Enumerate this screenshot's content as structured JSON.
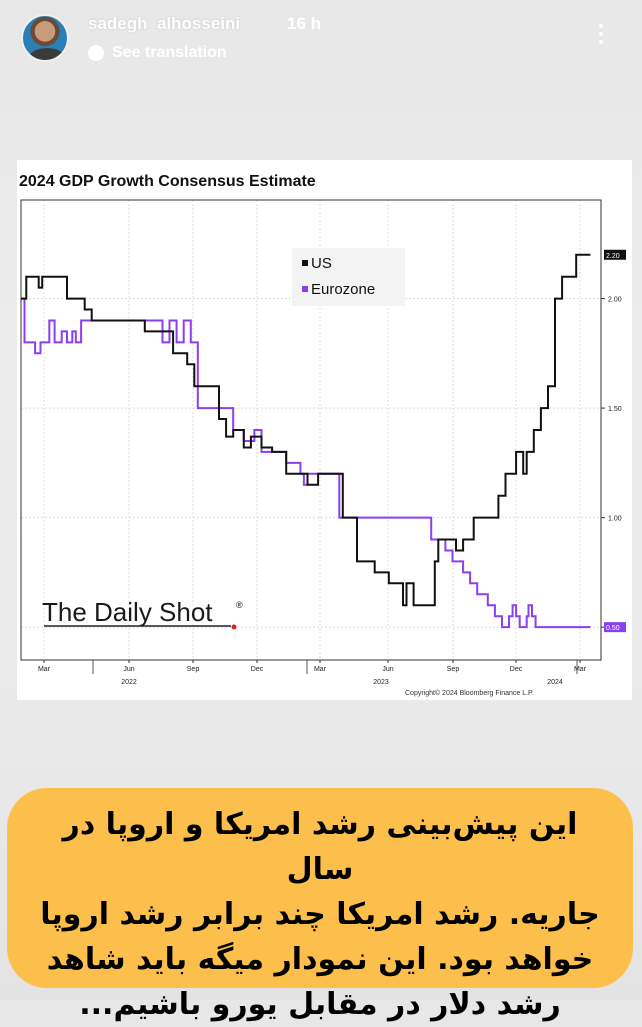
{
  "story": {
    "username": "sadegh_alhosseini",
    "time": "16 h",
    "translate_label": "See translation",
    "caption_lines": [
      "این پیش‌بینی رشد امریکا و اروپا در سال",
      "جاریه. رشد امریکا چند برابر رشد اروپا",
      "خواهد بود. این نمودار میگه باید شاهد",
      "رشد دلار در مقابل یورو باشیم..."
    ]
  },
  "chart_data": {
    "type": "line",
    "title": "2024 GDP Growth Consensus Estimate",
    "watermark": "The Daily Shot",
    "watermark_mark": "®",
    "copyright": "Copyright© 2024 Bloomberg Finance L.P.",
    "legend": [
      "US",
      "Eurozone"
    ],
    "colors": {
      "US": "#111111",
      "Eurozone": "#8a3ff2"
    },
    "y_ticks": [
      "2.00",
      "1.50",
      "1.00"
    ],
    "last_values": {
      "US": "2.20",
      "Eurozone": "0.50"
    },
    "ylim": [
      0.35,
      2.45
    ],
    "x_months": [
      "Mar",
      "Jun",
      "Sep",
      "Dec",
      "Mar",
      "Jun",
      "Sep",
      "Dec",
      "Mar"
    ],
    "x_years": [
      "2022",
      "2023",
      "2024"
    ],
    "series": [
      {
        "name": "US",
        "points": [
          [
            0.0,
            2.0
          ],
          [
            0.15,
            2.0
          ],
          [
            0.15,
            2.1
          ],
          [
            0.5,
            2.1
          ],
          [
            0.5,
            2.05
          ],
          [
            0.6,
            2.05
          ],
          [
            0.6,
            2.1
          ],
          [
            1.3,
            2.1
          ],
          [
            1.3,
            2.0
          ],
          [
            1.8,
            2.0
          ],
          [
            1.8,
            1.95
          ],
          [
            2.0,
            1.95
          ],
          [
            2.0,
            1.9
          ],
          [
            3.5,
            1.9
          ],
          [
            3.5,
            1.85
          ],
          [
            4.3,
            1.85
          ],
          [
            4.3,
            1.75
          ],
          [
            4.7,
            1.75
          ],
          [
            4.7,
            1.7
          ],
          [
            4.9,
            1.7
          ],
          [
            4.9,
            1.6
          ],
          [
            5.6,
            1.6
          ],
          [
            5.6,
            1.45
          ],
          [
            5.8,
            1.45
          ],
          [
            5.8,
            1.37
          ],
          [
            6.0,
            1.37
          ],
          [
            6.0,
            1.4
          ],
          [
            6.3,
            1.4
          ],
          [
            6.3,
            1.32
          ],
          [
            6.5,
            1.32
          ],
          [
            6.5,
            1.37
          ],
          [
            6.8,
            1.37
          ],
          [
            6.8,
            1.32
          ],
          [
            7.1,
            1.32
          ],
          [
            7.1,
            1.3
          ],
          [
            7.5,
            1.3
          ],
          [
            7.5,
            1.2
          ],
          [
            8.1,
            1.2
          ],
          [
            8.1,
            1.15
          ],
          [
            8.4,
            1.15
          ],
          [
            8.4,
            1.2
          ],
          [
            9.1,
            1.2
          ],
          [
            9.1,
            1.0
          ],
          [
            9.5,
            1.0
          ],
          [
            9.5,
            0.8
          ],
          [
            10.0,
            0.8
          ],
          [
            10.0,
            0.75
          ],
          [
            10.4,
            0.75
          ],
          [
            10.4,
            0.7
          ],
          [
            10.8,
            0.7
          ],
          [
            10.8,
            0.6
          ],
          [
            10.9,
            0.6
          ],
          [
            10.9,
            0.7
          ],
          [
            11.1,
            0.7
          ],
          [
            11.1,
            0.6
          ],
          [
            11.7,
            0.6
          ],
          [
            11.7,
            0.8
          ],
          [
            11.8,
            0.8
          ],
          [
            11.8,
            0.9
          ],
          [
            12.3,
            0.9
          ],
          [
            12.3,
            0.85
          ],
          [
            12.5,
            0.85
          ],
          [
            12.5,
            0.9
          ],
          [
            12.8,
            0.9
          ],
          [
            12.8,
            1.0
          ],
          [
            13.5,
            1.0
          ],
          [
            13.5,
            1.1
          ],
          [
            13.7,
            1.1
          ],
          [
            13.7,
            1.2
          ],
          [
            14.0,
            1.2
          ],
          [
            14.0,
            1.3
          ],
          [
            14.2,
            1.3
          ],
          [
            14.2,
            1.2
          ],
          [
            14.3,
            1.2
          ],
          [
            14.3,
            1.3
          ],
          [
            14.5,
            1.3
          ],
          [
            14.5,
            1.4
          ],
          [
            14.7,
            1.4
          ],
          [
            14.7,
            1.5
          ],
          [
            14.9,
            1.5
          ],
          [
            14.9,
            1.6
          ],
          [
            15.1,
            1.6
          ],
          [
            15.1,
            2.0
          ],
          [
            15.3,
            2.0
          ],
          [
            15.3,
            2.1
          ],
          [
            15.7,
            2.1
          ],
          [
            15.7,
            2.2
          ],
          [
            16.1,
            2.2
          ]
        ]
      },
      {
        "name": "Eurozone",
        "points": [
          [
            0.0,
            2.0
          ],
          [
            0.1,
            2.0
          ],
          [
            0.1,
            1.8
          ],
          [
            0.4,
            1.8
          ],
          [
            0.4,
            1.75
          ],
          [
            0.55,
            1.75
          ],
          [
            0.55,
            1.8
          ],
          [
            0.8,
            1.8
          ],
          [
            0.8,
            1.9
          ],
          [
            0.95,
            1.9
          ],
          [
            0.95,
            1.8
          ],
          [
            1.15,
            1.8
          ],
          [
            1.15,
            1.85
          ],
          [
            1.3,
            1.85
          ],
          [
            1.3,
            1.8
          ],
          [
            1.45,
            1.8
          ],
          [
            1.45,
            1.85
          ],
          [
            1.55,
            1.85
          ],
          [
            1.55,
            1.8
          ],
          [
            1.7,
            1.8
          ],
          [
            1.7,
            1.9
          ],
          [
            4.0,
            1.9
          ],
          [
            4.0,
            1.8
          ],
          [
            4.2,
            1.8
          ],
          [
            4.2,
            1.9
          ],
          [
            4.4,
            1.9
          ],
          [
            4.4,
            1.8
          ],
          [
            4.6,
            1.8
          ],
          [
            4.6,
            1.9
          ],
          [
            4.8,
            1.9
          ],
          [
            4.8,
            1.8
          ],
          [
            5.0,
            1.8
          ],
          [
            5.0,
            1.5
          ],
          [
            5.3,
            1.5
          ],
          [
            5.3,
            1.5
          ],
          [
            6.0,
            1.5
          ],
          [
            6.0,
            1.4
          ],
          [
            6.3,
            1.4
          ],
          [
            6.3,
            1.35
          ],
          [
            6.6,
            1.35
          ],
          [
            6.6,
            1.4
          ],
          [
            6.8,
            1.4
          ],
          [
            6.8,
            1.3
          ],
          [
            7.5,
            1.3
          ],
          [
            7.5,
            1.25
          ],
          [
            7.9,
            1.25
          ],
          [
            7.9,
            1.2
          ],
          [
            8.0,
            1.2
          ],
          [
            8.0,
            1.15
          ],
          [
            8.1,
            1.15
          ],
          [
            8.1,
            1.2
          ],
          [
            9.0,
            1.2
          ],
          [
            9.0,
            1.0
          ],
          [
            11.6,
            1.0
          ],
          [
            11.6,
            0.9
          ],
          [
            12.0,
            0.9
          ],
          [
            12.0,
            0.85
          ],
          [
            12.2,
            0.85
          ],
          [
            12.2,
            0.8
          ],
          [
            12.5,
            0.8
          ],
          [
            12.5,
            0.75
          ],
          [
            12.7,
            0.75
          ],
          [
            12.7,
            0.7
          ],
          [
            12.9,
            0.7
          ],
          [
            12.9,
            0.65
          ],
          [
            13.2,
            0.65
          ],
          [
            13.2,
            0.6
          ],
          [
            13.4,
            0.6
          ],
          [
            13.4,
            0.55
          ],
          [
            13.6,
            0.55
          ],
          [
            13.6,
            0.5
          ],
          [
            13.8,
            0.5
          ],
          [
            13.8,
            0.55
          ],
          [
            13.9,
            0.55
          ],
          [
            13.9,
            0.6
          ],
          [
            14.0,
            0.6
          ],
          [
            14.0,
            0.55
          ],
          [
            14.1,
            0.55
          ],
          [
            14.1,
            0.5
          ],
          [
            14.3,
            0.5
          ],
          [
            14.3,
            0.55
          ],
          [
            14.35,
            0.55
          ],
          [
            14.35,
            0.6
          ],
          [
            14.45,
            0.6
          ],
          [
            14.45,
            0.55
          ],
          [
            14.55,
            0.55
          ],
          [
            14.55,
            0.5
          ],
          [
            16.1,
            0.5
          ]
        ]
      }
    ]
  }
}
